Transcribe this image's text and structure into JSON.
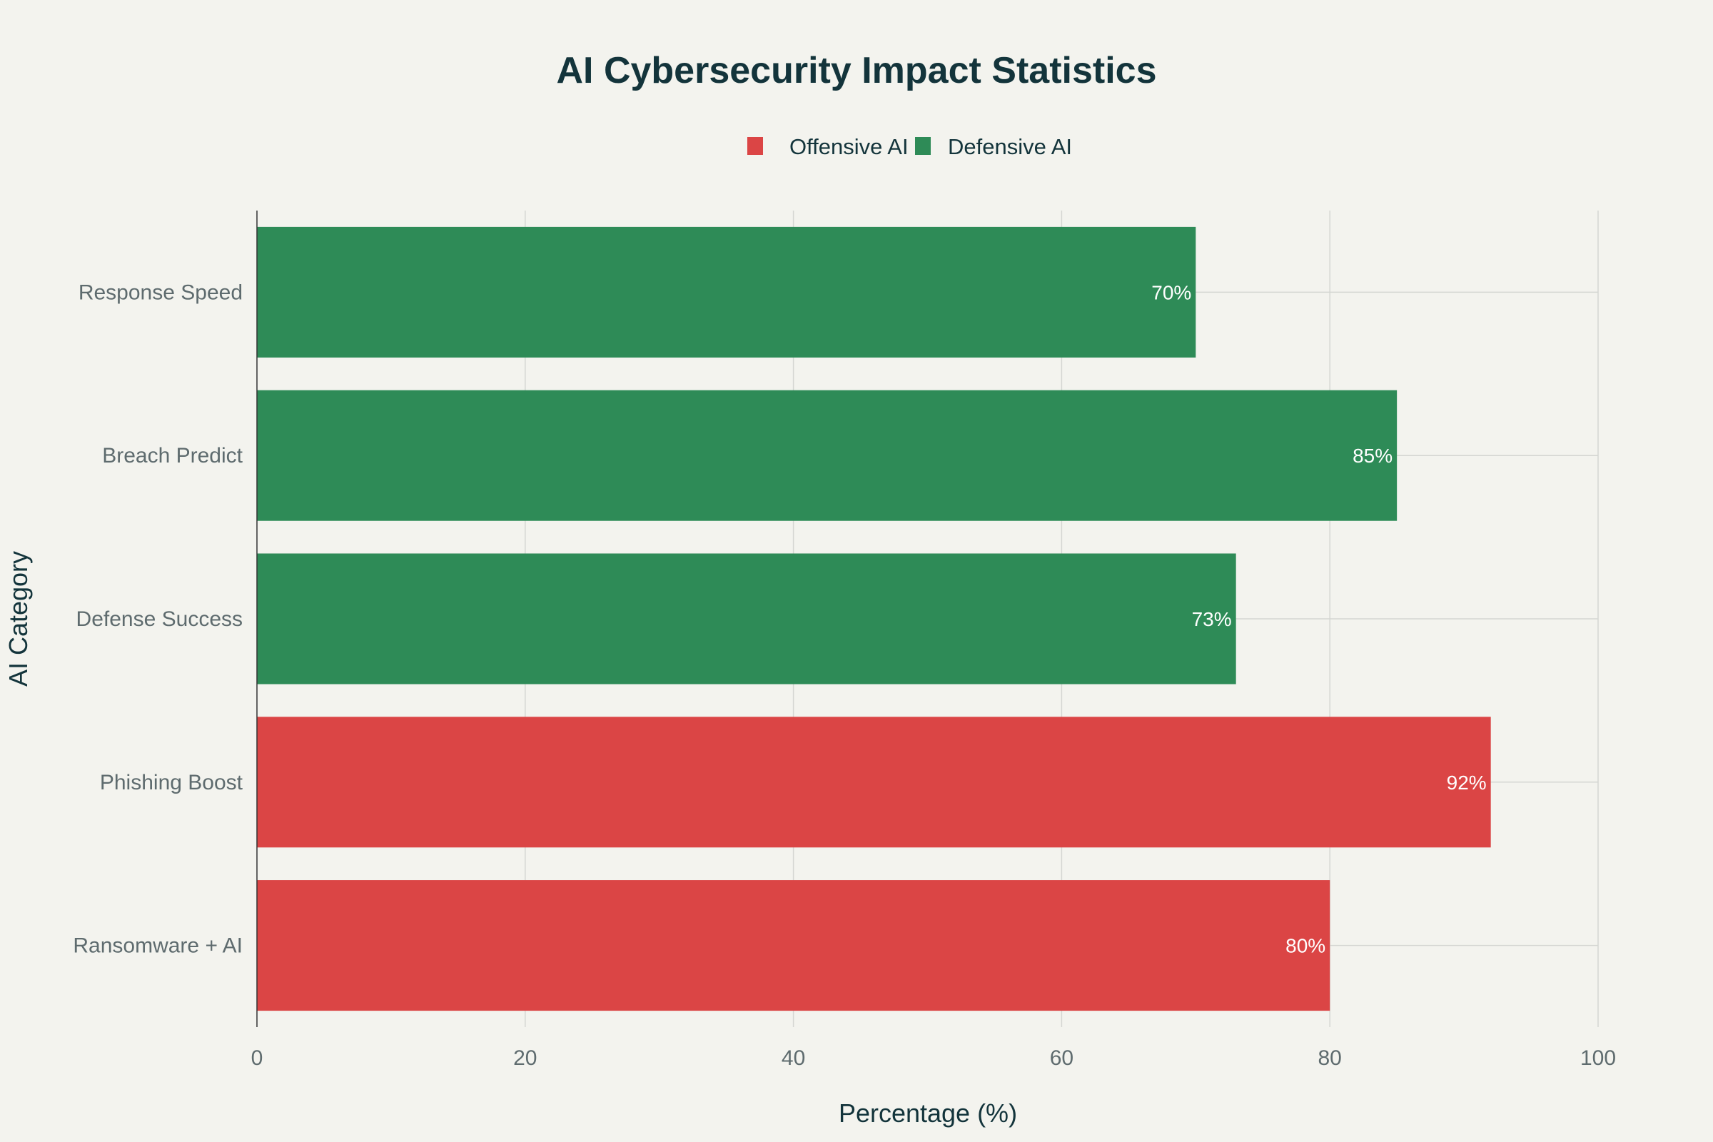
{
  "chart_data": {
    "type": "bar",
    "orientation": "horizontal",
    "title": "AI Cybersecurity Impact Statistics",
    "xlabel": "Percentage (%)",
    "ylabel": "AI Category",
    "xlim": [
      0,
      100
    ],
    "xticks": [
      0,
      20,
      40,
      60,
      80,
      100
    ],
    "grid": true,
    "legend_position": "top-center",
    "categories": [
      "Response Speed",
      "Breach Predict",
      "Defense Success",
      "Phishing Boost",
      "Ransomware + AI"
    ],
    "values": [
      70,
      85,
      73,
      92,
      80
    ],
    "data_labels": [
      "70%",
      "85%",
      "73%",
      "92%",
      "80%"
    ],
    "groups": [
      "Defensive AI",
      "Defensive AI",
      "Defensive AI",
      "Offensive AI",
      "Offensive AI"
    ],
    "series": [
      {
        "name": "Offensive AI",
        "color": "#db4545"
      },
      {
        "name": "Defensive AI",
        "color": "#2e8b57"
      }
    ]
  }
}
